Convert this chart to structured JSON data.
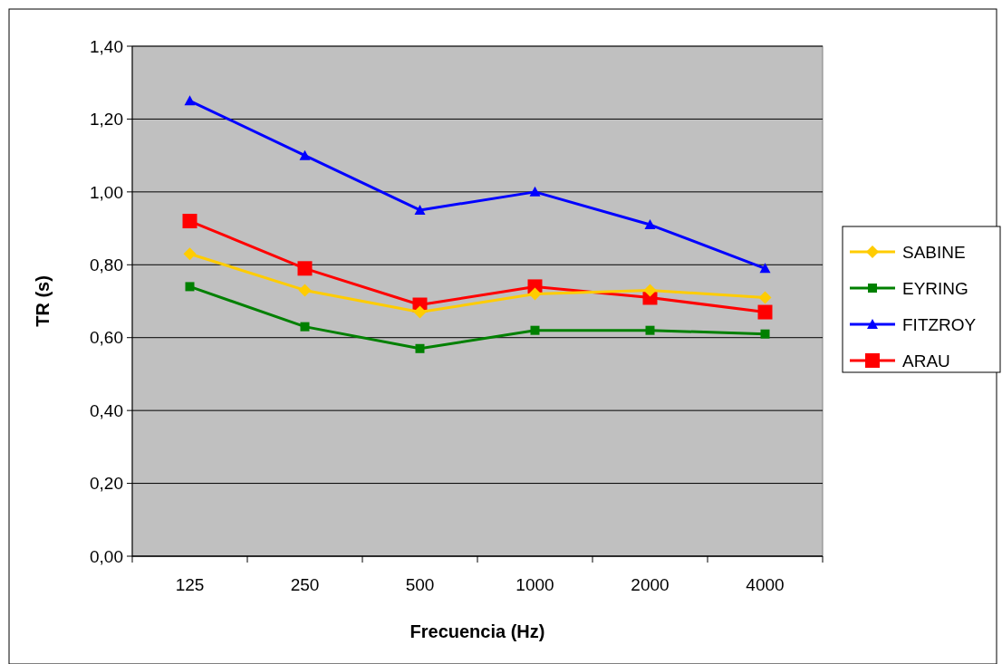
{
  "chart_data": {
    "type": "line",
    "xlabel": "Frecuencia (Hz)",
    "ylabel": "TR (s)",
    "categories": [
      "125",
      "250",
      "500",
      "1000",
      "2000",
      "4000"
    ],
    "ylim": [
      0,
      1.4
    ],
    "yticks": [
      {
        "value": 0,
        "label": "0,00"
      },
      {
        "value": 0.2,
        "label": "0,20"
      },
      {
        "value": 0.4,
        "label": "0,40"
      },
      {
        "value": 0.6,
        "label": "0,60"
      },
      {
        "value": 0.8,
        "label": "0,80"
      },
      {
        "value": 1,
        "label": "1,00"
      },
      {
        "value": 1.2,
        "label": "1,20"
      },
      {
        "value": 1.4,
        "label": "1,40"
      }
    ],
    "grid": "y",
    "legend": "right",
    "series": [
      {
        "name": "SABINE",
        "color": "#ffcc00",
        "marker": "diamond",
        "values": [
          0.83,
          0.73,
          0.67,
          0.72,
          0.73,
          0.71
        ]
      },
      {
        "name": "EYRING",
        "color": "#008000",
        "marker": "square",
        "values": [
          0.74,
          0.63,
          0.57,
          0.62,
          0.62,
          0.61
        ]
      },
      {
        "name": "FITZROY",
        "color": "#0000ff",
        "marker": "triangle",
        "values": [
          1.25,
          1.1,
          0.95,
          1.0,
          0.91,
          0.79
        ]
      },
      {
        "name": "ARAU",
        "color": "#ff0000",
        "marker": "square",
        "values": [
          0.92,
          0.79,
          0.69,
          0.74,
          0.71,
          0.67
        ]
      }
    ]
  }
}
